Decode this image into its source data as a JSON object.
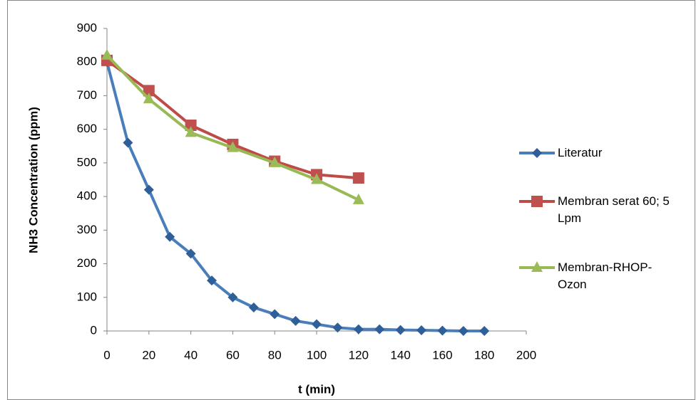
{
  "chart_data": {
    "type": "line",
    "y_label": "NH3 Concentration (ppm)",
    "x_label": "t (min)",
    "xlim": [
      0,
      200
    ],
    "xticks": [
      0,
      20,
      40,
      60,
      80,
      100,
      120,
      140,
      160,
      180,
      200
    ],
    "ylim": [
      0,
      900
    ],
    "yticks": [
      0,
      100,
      200,
      300,
      400,
      500,
      600,
      700,
      800,
      900
    ],
    "grid": false,
    "legend": "right",
    "series": [
      {
        "name": "Literatur",
        "color": "#4a7ebb",
        "marker_color": "#2f5f98",
        "marker": "diamond",
        "x": [
          0,
          10,
          20,
          30,
          40,
          50,
          60,
          70,
          80,
          90,
          100,
          110,
          120,
          130,
          140,
          150,
          160,
          170,
          180
        ],
        "values": [
          800,
          560,
          420,
          280,
          230,
          150,
          100,
          70,
          50,
          30,
          20,
          10,
          5,
          5,
          3,
          2,
          1,
          0,
          0
        ]
      },
      {
        "name": "Membran serat 60; 5 Lpm",
        "color": "#be4b48",
        "marker_color": "#c0504d",
        "marker": "square",
        "x": [
          0,
          20,
          40,
          60,
          80,
          100,
          120
        ],
        "values": [
          805,
          715,
          612,
          555,
          505,
          465,
          455
        ]
      },
      {
        "name": "Membran-RHOP-Ozon",
        "color": "#98b954",
        "marker_color": "#9bbb59",
        "marker": "triangle",
        "x": [
          0,
          20,
          40,
          60,
          80,
          100,
          120
        ],
        "values": [
          820,
          690,
          590,
          545,
          500,
          450,
          390
        ]
      }
    ]
  }
}
